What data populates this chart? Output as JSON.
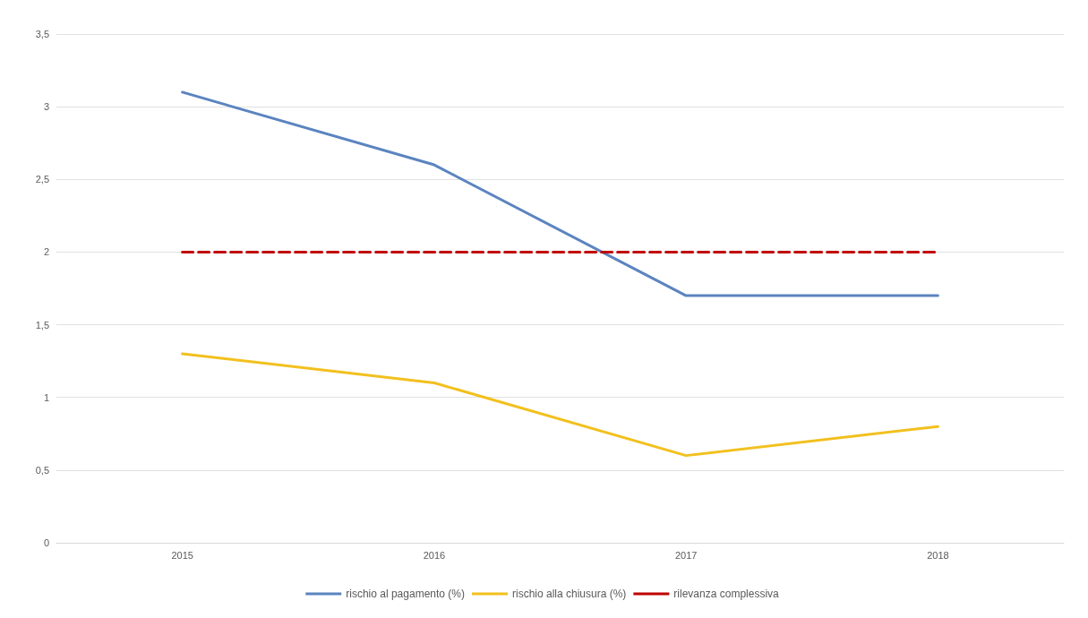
{
  "chart_data": {
    "type": "line",
    "categories": [
      "2015",
      "2016",
      "2017",
      "2018"
    ],
    "series": [
      {
        "name": "rischio al pagamento (%)",
        "color": "#5b84c0",
        "values": [
          3.1,
          2.6,
          1.7,
          1.7
        ]
      },
      {
        "name": "rischio alla chiusura (%)",
        "color": "#f2c01e",
        "values": [
          1.3,
          1.1,
          0.6,
          0.8
        ]
      },
      {
        "name": "rilevanza complessiva",
        "color": "#c00000",
        "values": [
          2,
          2,
          2,
          2
        ],
        "line_style": "dashed"
      }
    ],
    "ylim": [
      0,
      3.5
    ],
    "yticks": [
      0,
      {
        "value": 0.5,
        "label": "0,5"
      },
      1,
      {
        "value": 1.5,
        "label": "1,5"
      },
      2,
      {
        "value": 2.5,
        "label": "2,5"
      },
      3,
      {
        "value": 3.5,
        "label": "3,5"
      }
    ],
    "grid": "y",
    "legend": "bottom",
    "marker": "none"
  }
}
